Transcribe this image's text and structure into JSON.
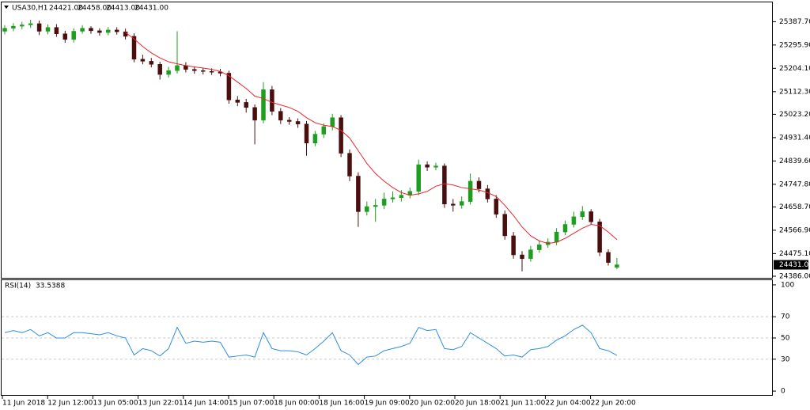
{
  "chart_data": [
    {
      "type": "candlestick",
      "symbol": "USA30,H1",
      "ohlc_labels": [
        "24421.00",
        "24458.00",
        "24413.00",
        "24431.00"
      ],
      "last_price_label": "24431.00",
      "last_price": 24431,
      "bull_color": "#1e9e1e",
      "bear_color": "#4a0e0e",
      "ma_color": "#e8262b",
      "ylim": [
        24379.7,
        25463.7
      ],
      "yticks": [
        {
          "value": 25387.7,
          "label": "25387.70"
        },
        {
          "value": 25295.9,
          "label": "25295.90"
        },
        {
          "value": 25204.1,
          "label": "25204.10"
        },
        {
          "value": 25112.3,
          "label": "25112.30"
        },
        {
          "value": 25023.2,
          "label": "25023.20"
        },
        {
          "value": 24931.4,
          "label": "24931.40"
        },
        {
          "value": 24839.6,
          "label": "24839.60"
        },
        {
          "value": 24747.8,
          "label": "24747.80"
        },
        {
          "value": 24658.7,
          "label": "24658.70"
        },
        {
          "value": 24566.9,
          "label": "24566.90"
        },
        {
          "value": 24475.1,
          "label": "24475.10"
        },
        {
          "value": 24386,
          "label": "24386.00"
        }
      ],
      "time_labels": [
        "11 Jun 2018",
        "12 Jun 12:00",
        "13 Jun 05:00",
        "13 Jun 22:01",
        "14 Jun 14:00",
        "15 Jun 07:00",
        "18 Jun 00:00",
        "18 Jun 16:00",
        "19 Jun 09:00",
        "20 Jun 02:00",
        "20 Jun 18:00",
        "21 Jun 11:00",
        "22 Jun 04:00",
        "22 Jun 20:00"
      ],
      "open": [
        25350,
        25362,
        25370,
        25375,
        25380,
        25350,
        25365,
        25340,
        25318,
        25350,
        25362,
        25352,
        25345,
        25355,
        25348,
        25330,
        25240,
        25232,
        25220,
        25180,
        25195,
        25215,
        25200,
        25195,
        25192,
        25190,
        25185,
        25080,
        25070,
        25050,
        25000,
        25120,
        25035,
        25000,
        24995,
        24985,
        24910,
        24945,
        24975,
        25010,
        24870,
        24780,
        24640,
        24660,
        24665,
        24690,
        24695,
        24705,
        24720,
        24825,
        24815,
        24820,
        24670,
        24665,
        24680,
        24760,
        24730,
        24690,
        24630,
        24545,
        24470,
        24455,
        24490,
        24510,
        24520,
        24560,
        24590,
        24620,
        24640,
        24600,
        24480,
        24421
      ],
      "high": [
        25374,
        25382,
        25387,
        25395,
        25392,
        25377,
        25378,
        25352,
        25362,
        25374,
        25370,
        25362,
        25367,
        25366,
        25360,
        25342,
        25258,
        25245,
        25230,
        25210,
        25350,
        25228,
        25212,
        25206,
        25204,
        25202,
        25195,
        25095,
        25084,
        25062,
        25150,
        25135,
        25048,
        25012,
        25007,
        24997,
        24958,
        24988,
        25025,
        25020,
        24885,
        24795,
        24680,
        24690,
        24715,
        24720,
        24725,
        24735,
        24845,
        24838,
        24832,
        24830,
        24690,
        24700,
        24790,
        24775,
        24745,
        24705,
        24645,
        24560,
        24485,
        24505,
        24525,
        24535,
        24575,
        24605,
        24640,
        24662,
        24650,
        24612,
        24492,
        24458
      ],
      "low": [
        25338,
        25350,
        25358,
        25363,
        25335,
        25338,
        25328,
        25305,
        25306,
        25340,
        25340,
        25333,
        25334,
        25337,
        25318,
        25228,
        25220,
        25208,
        25160,
        25168,
        25183,
        25188,
        25183,
        25180,
        25178,
        25173,
        25065,
        25055,
        25030,
        24905,
        24988,
        25020,
        24985,
        24982,
        24970,
        24860,
        24898,
        24930,
        24960,
        24855,
        24760,
        24580,
        24625,
        24600,
        24650,
        24676,
        24680,
        24692,
        24705,
        24800,
        24803,
        24655,
        24640,
        24652,
        24668,
        24716,
        24676,
        24616,
        24530,
        24455,
        24405,
        24443,
        24478,
        24498,
        24508,
        24548,
        24578,
        24608,
        24588,
        24465,
        24428,
        24413
      ],
      "close": [
        25362,
        25370,
        25375,
        25380,
        25350,
        25365,
        25340,
        25318,
        25350,
        25362,
        25352,
        25345,
        25355,
        25348,
        25330,
        25240,
        25232,
        25220,
        25180,
        25195,
        25215,
        25200,
        25195,
        25192,
        25190,
        25185,
        25080,
        25070,
        25050,
        25000,
        25120,
        25035,
        25000,
        24995,
        24985,
        24910,
        24945,
        24975,
        25010,
        24870,
        24780,
        24640,
        24660,
        24665,
        24690,
        24695,
        24705,
        24720,
        24825,
        24815,
        24820,
        24670,
        24665,
        24680,
        24760,
        24730,
        24690,
        24630,
        24545,
        24470,
        24455,
        24490,
        24510,
        24520,
        24560,
        24590,
        24620,
        24640,
        24600,
        24480,
        24440,
        24431
      ],
      "ma": [
        null,
        null,
        null,
        null,
        null,
        null,
        null,
        null,
        null,
        null,
        null,
        null,
        null,
        null,
        25345,
        25320,
        25290,
        25265,
        25245,
        25230,
        25222,
        25215,
        25210,
        25205,
        25200,
        25192,
        25175,
        25150,
        25125,
        25095,
        25085,
        25070,
        25060,
        25050,
        25035,
        25010,
        24990,
        24980,
        24975,
        24960,
        24930,
        24880,
        24830,
        24790,
        24760,
        24735,
        24715,
        24705,
        24710,
        24720,
        24740,
        24750,
        24745,
        24735,
        24730,
        24725,
        24715,
        24700,
        24665,
        24625,
        24580,
        24545,
        24525,
        24515,
        24520,
        24535,
        24555,
        24575,
        24590,
        24585,
        24560,
        24530
      ]
    },
    {
      "type": "line",
      "label": "RSI(14)",
      "color": "#2f8ee0",
      "ylim": [
        -4.4,
        104.4
      ],
      "yticks": [
        100,
        70,
        50,
        30,
        0
      ],
      "levels": [
        70,
        50,
        30
      ],
      "values": [
        55,
        57,
        55,
        58,
        52,
        55,
        50,
        50,
        55,
        55,
        54,
        53,
        55,
        52,
        50,
        34,
        40,
        38,
        33,
        40,
        60,
        45,
        47,
        46,
        47,
        46,
        32,
        33,
        34,
        32,
        55,
        40,
        38,
        38,
        37,
        34,
        40,
        47,
        55,
        38,
        34,
        25,
        32,
        33,
        38,
        40,
        42,
        45,
        60,
        57,
        58,
        40,
        39,
        42,
        55,
        50,
        45,
        40,
        33,
        34,
        32,
        39,
        40,
        42,
        48,
        52,
        58,
        62,
        55,
        40,
        38,
        33.5388
      ]
    }
  ]
}
